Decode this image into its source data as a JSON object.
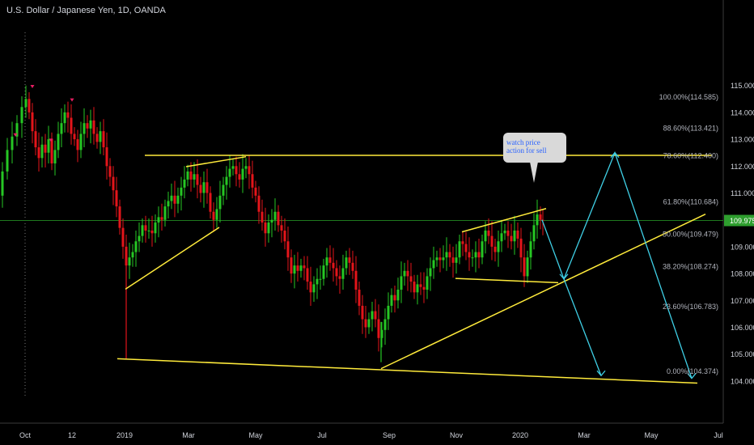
{
  "chart_title": "U.S. Dollar / Japanese Yen, 1D, OANDA",
  "annotation": {
    "line1": "watch price",
    "line2": "action for sell"
  },
  "colors": {
    "background": "#000000",
    "up_candle": "#26c724",
    "down_candle": "#e3151a",
    "trendline": "#ffeb3b",
    "projection": "#3fd0e6",
    "current_price_line": "#1f7a1f",
    "current_price_badge": "#2e9e2e",
    "axis_text": "#d1d4dc"
  },
  "chart_data": {
    "type": "candlestick",
    "symbol": "USDJPY",
    "timeframe": "1D",
    "ylim": [
      103.6,
      115.6
    ],
    "y_ticks": [
      "115.000",
      "114.000",
      "113.000",
      "112.000",
      "111.000",
      "110.000",
      "109.000",
      "108.000",
      "107.000",
      "106.000",
      "105.000",
      "104.000"
    ],
    "y_tick_values": [
      115,
      114,
      113,
      112,
      111,
      110,
      109,
      108,
      107,
      106,
      105,
      104
    ],
    "x_ticks": [
      "Oct",
      "12",
      "2019",
      "Mar",
      "May",
      "Jul",
      "Sep",
      "Nov",
      "2020",
      "Mar",
      "May",
      "Jul"
    ],
    "current_price": "109.975",
    "fibonacci_levels": [
      {
        "label": "100.00%(114.585)",
        "value": 114.585
      },
      {
        "label": "88.60%(113.421)",
        "value": 113.421
      },
      {
        "label": "78.60%(112.400)",
        "value": 112.4
      },
      {
        "label": "61.80%(110.684)",
        "value": 110.684
      },
      {
        "label": "50.00%(109.479)",
        "value": 109.479
      },
      {
        "label": "38.20%(108.274)",
        "value": 108.274
      },
      {
        "label": "23.60%(106.783)",
        "value": 106.783
      },
      {
        "label": "0.00%(104.374)",
        "value": 104.374
      }
    ],
    "price_path": [
      [
        0,
        110.9
      ],
      [
        6,
        111.8
      ],
      [
        12,
        112.6
      ],
      [
        18,
        113.1
      ],
      [
        24,
        113.6
      ],
      [
        30,
        114.2
      ],
      [
        34,
        114.5
      ],
      [
        38,
        114.0
      ],
      [
        42,
        113.3
      ],
      [
        46,
        112.7
      ],
      [
        50,
        112.3
      ],
      [
        54,
        112.8
      ],
      [
        58,
        112.5
      ],
      [
        62,
        113.0
      ],
      [
        66,
        112.1
      ],
      [
        70,
        112.6
      ],
      [
        74,
        113.2
      ],
      [
        78,
        113.6
      ],
      [
        82,
        114.0
      ],
      [
        86,
        113.8
      ],
      [
        90,
        113.2
      ],
      [
        94,
        113.0
      ],
      [
        98,
        112.6
      ],
      [
        102,
        113.2
      ],
      [
        106,
        113.6
      ],
      [
        110,
        113.4
      ],
      [
        114,
        113.7
      ],
      [
        118,
        113.2
      ],
      [
        122,
        112.9
      ],
      [
        126,
        113.3
      ],
      [
        130,
        112.7
      ],
      [
        134,
        112.0
      ],
      [
        138,
        111.6
      ],
      [
        142,
        111.1
      ],
      [
        146,
        110.5
      ],
      [
        150,
        109.7
      ],
      [
        154,
        109.0
      ],
      [
        158,
        108.3
      ],
      [
        162,
        108.6
      ],
      [
        166,
        108.8
      ],
      [
        170,
        109.2
      ],
      [
        174,
        109.4
      ],
      [
        178,
        109.8
      ],
      [
        182,
        109.6
      ],
      [
        186,
        109.6
      ],
      [
        190,
        109.5
      ],
      [
        194,
        109.9
      ],
      [
        198,
        110.1
      ],
      [
        202,
        110.0
      ],
      [
        206,
        110.5
      ],
      [
        210,
        110.7
      ],
      [
        214,
        110.9
      ],
      [
        218,
        110.6
      ],
      [
        222,
        110.9
      ],
      [
        226,
        111.2
      ],
      [
        230,
        111.5
      ],
      [
        234,
        111.8
      ],
      [
        238,
        111.5
      ],
      [
        242,
        111.7
      ],
      [
        246,
        111.3
      ],
      [
        250,
        111.0
      ],
      [
        254,
        111.4
      ],
      [
        258,
        111.0
      ],
      [
        262,
        110.3
      ],
      [
        266,
        110.0
      ],
      [
        270,
        110.4
      ],
      [
        274,
        110.9
      ],
      [
        278,
        111.3
      ],
      [
        282,
        111.6
      ],
      [
        286,
        111.9
      ],
      [
        290,
        112.0
      ],
      [
        294,
        111.7
      ],
      [
        298,
        111.5
      ],
      [
        302,
        111.9
      ],
      [
        306,
        112.0
      ],
      [
        310,
        111.7
      ],
      [
        314,
        111.2
      ],
      [
        318,
        110.9
      ],
      [
        322,
        110.3
      ],
      [
        326,
        109.9
      ],
      [
        330,
        109.5
      ],
      [
        334,
        109.9
      ],
      [
        338,
        110.0
      ],
      [
        342,
        110.3
      ],
      [
        346,
        109.8
      ],
      [
        350,
        109.6
      ],
      [
        354,
        109.2
      ],
      [
        358,
        108.6
      ],
      [
        362,
        108.0
      ],
      [
        366,
        108.3
      ],
      [
        370,
        108.1
      ],
      [
        374,
        108.3
      ],
      [
        378,
        108.2
      ],
      [
        382,
        107.7
      ],
      [
        386,
        107.3
      ],
      [
        390,
        107.6
      ],
      [
        394,
        107.8
      ],
      [
        398,
        107.8
      ],
      [
        402,
        108.3
      ],
      [
        406,
        108.6
      ],
      [
        410,
        108.4
      ],
      [
        414,
        108.2
      ],
      [
        418,
        107.9
      ],
      [
        422,
        107.8
      ],
      [
        426,
        108.2
      ],
      [
        430,
        108.6
      ],
      [
        434,
        108.4
      ],
      [
        438,
        108.1
      ],
      [
        442,
        107.4
      ],
      [
        446,
        106.8
      ],
      [
        450,
        106.3
      ],
      [
        454,
        106.0
      ],
      [
        458,
        106.3
      ],
      [
        462,
        106.6
      ],
      [
        466,
        106.3
      ],
      [
        470,
        105.6
      ],
      [
        474,
        105.9
      ],
      [
        478,
        106.3
      ],
      [
        482,
        106.8
      ],
      [
        486,
        107.2
      ],
      [
        490,
        107.0
      ],
      [
        494,
        107.4
      ],
      [
        498,
        107.9
      ],
      [
        502,
        108.1
      ],
      [
        506,
        107.9
      ],
      [
        510,
        107.7
      ],
      [
        514,
        107.3
      ],
      [
        518,
        107.6
      ],
      [
        522,
        107.5
      ],
      [
        526,
        107.4
      ],
      [
        530,
        107.9
      ],
      [
        534,
        108.2
      ],
      [
        538,
        108.5
      ],
      [
        542,
        108.6
      ],
      [
        546,
        108.5
      ],
      [
        550,
        108.6
      ],
      [
        554,
        108.8
      ],
      [
        558,
        108.6
      ],
      [
        562,
        108.4
      ],
      [
        566,
        108.6
      ],
      [
        570,
        109.2
      ],
      [
        574,
        109.1
      ],
      [
        578,
        108.8
      ],
      [
        582,
        108.6
      ],
      [
        586,
        108.6
      ],
      [
        590,
        108.8
      ],
      [
        594,
        108.6
      ],
      [
        598,
        109.2
      ],
      [
        602,
        109.6
      ],
      [
        606,
        109.4
      ],
      [
        610,
        109.0
      ],
      [
        614,
        108.8
      ],
      [
        618,
        109.2
      ],
      [
        622,
        109.5
      ],
      [
        626,
        109.6
      ],
      [
        630,
        109.4
      ],
      [
        634,
        109.2
      ],
      [
        638,
        109.6
      ],
      [
        642,
        109.3
      ],
      [
        646,
        108.6
      ],
      [
        650,
        107.9
      ],
      [
        654,
        108.6
      ],
      [
        658,
        109.2
      ],
      [
        662,
        109.8
      ],
      [
        666,
        110.2
      ],
      [
        670,
        110.0
      ],
      [
        672,
        109.975
      ]
    ],
    "trendlines": [
      {
        "from": [
          179,
          112.4
        ],
        "to": [
          880,
          112.4
        ]
      },
      {
        "from": [
          230,
          111.98
        ],
        "to": [
          304,
          112.35
        ]
      },
      {
        "from": [
          155,
          107.42
        ],
        "to": [
          271,
          109.72
        ]
      },
      {
        "from": [
          145,
          104.83
        ],
        "to": [
          862,
          103.92
        ]
      },
      {
        "from": [
          471,
          104.46
        ],
        "to": [
          872,
          110.21
        ]
      },
      {
        "from": [
          571,
          109.55
        ],
        "to": [
          675,
          110.42
        ]
      },
      {
        "from": [
          563,
          107.82
        ],
        "to": [
          690,
          107.66
        ]
      }
    ],
    "projection_path": [
      [
        670,
        110.0
      ],
      [
        697,
        107.8
      ],
      [
        760,
        112.5
      ],
      [
        855,
        104.1
      ]
    ],
    "projection_branch": [
      [
        697,
        107.8
      ],
      [
        743,
        104.2
      ]
    ],
    "arrow_heads": [
      [
        743,
        104.2
      ],
      [
        855,
        104.1
      ],
      [
        697,
        107.8
      ]
    ]
  }
}
